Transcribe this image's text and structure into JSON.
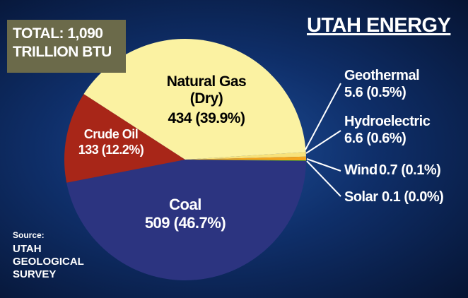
{
  "chart_data": {
    "type": "pie",
    "title": "UTAH ENERGY",
    "total": "TOTAL: 1,090 TRILLION BTU",
    "source_label": "Source:",
    "source": "UTAH GEOLOGICAL SURVEY",
    "categories": [
      "Coal",
      "Crude Oil",
      "Natural Gas (Dry)",
      "Hydroelectric",
      "Geothermal",
      "Wind",
      "Solar"
    ],
    "values": [
      509,
      133,
      434,
      6.6,
      5.6,
      0.7,
      0.1
    ],
    "value_labels": [
      "509 (46.7%)",
      "133 (12.2%)",
      "434 (39.9%)",
      "6.6 (0.6%)",
      "5.6 (0.5%)",
      "0.7 (0.1%)",
      "0.1 (0.0%)"
    ],
    "colors": [
      "#2c3480",
      "#a82618",
      "#fbf2a2",
      "#f7e27c",
      "#f3a51e",
      "#3c9b2a",
      "#9aa0a0"
    ]
  }
}
